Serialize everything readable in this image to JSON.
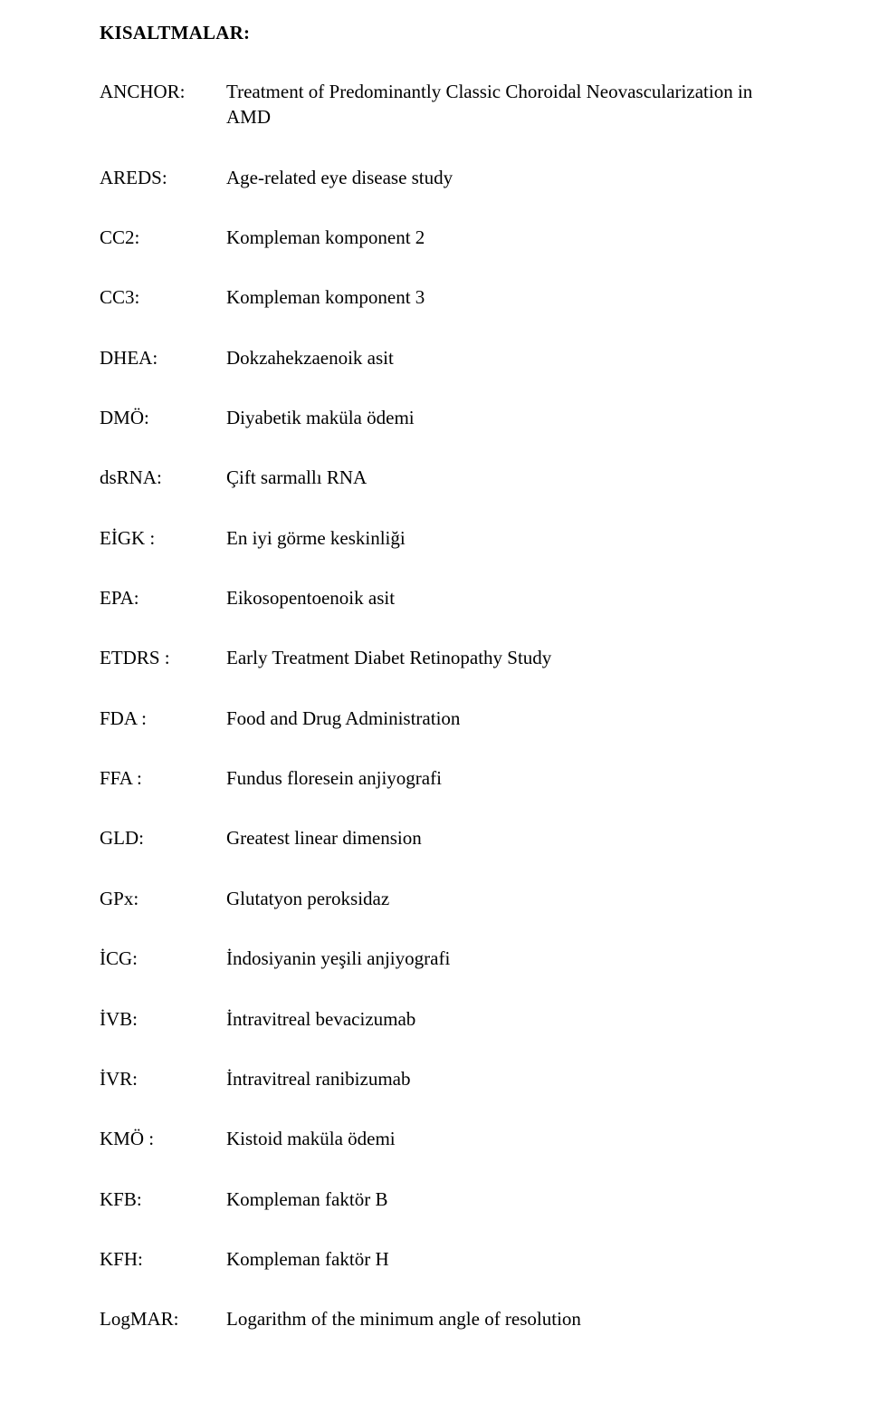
{
  "title": "KISALTMALAR:",
  "entries": [
    {
      "term": "ANCHOR:",
      "def": "Treatment of Predominantly Classic Choroidal Neovascularization in AMD"
    },
    {
      "term": "AREDS:",
      "def": "Age-related eye disease study"
    },
    {
      "term": "CC2:",
      "def": "Kompleman komponent 2"
    },
    {
      "term": "CC3:",
      "def": "Kompleman komponent 3"
    },
    {
      "term": "DHEA:",
      "def": "Dokzahekzaenoik asit"
    },
    {
      "term": "DMÖ:",
      "def": "Diyabetik maküla ödemi"
    },
    {
      "term": "dsRNA:",
      "def": "Çift sarmallı RNA"
    },
    {
      "term": "EİGK :",
      "def": "En iyi görme keskinliği"
    },
    {
      "term": "EPA:",
      "def": "Eikosopentoenoik asit"
    },
    {
      "term": "ETDRS :",
      "def": "Early Treatment Diabet Retinopathy Study"
    },
    {
      "term": "FDA :",
      "def": "Food and Drug Administration"
    },
    {
      "term": "FFA :",
      "def": "Fundus floresein anjiyografi"
    },
    {
      "term": "GLD:",
      "def": "Greatest linear dimension"
    },
    {
      "term": "GPx:",
      "def": "Glutatyon peroksidaz"
    },
    {
      "term": "İCG:",
      "def": "İndosiyanin yeşili anjiyografi"
    },
    {
      "term": "İVB:",
      "def": "İntravitreal bevacizumab"
    },
    {
      "term": "İVR:",
      "def": "İntravitreal ranibizumab"
    },
    {
      "term": "KMÖ :",
      "def": "Kistoid maküla ödemi"
    },
    {
      "term": "KFB:",
      "def": "Kompleman faktör B"
    },
    {
      "term": "KFH:",
      "def": "Kompleman faktör H"
    },
    {
      "term": "LogMAR:",
      "def": "Logarithm of the minimum angle of resolution"
    }
  ]
}
